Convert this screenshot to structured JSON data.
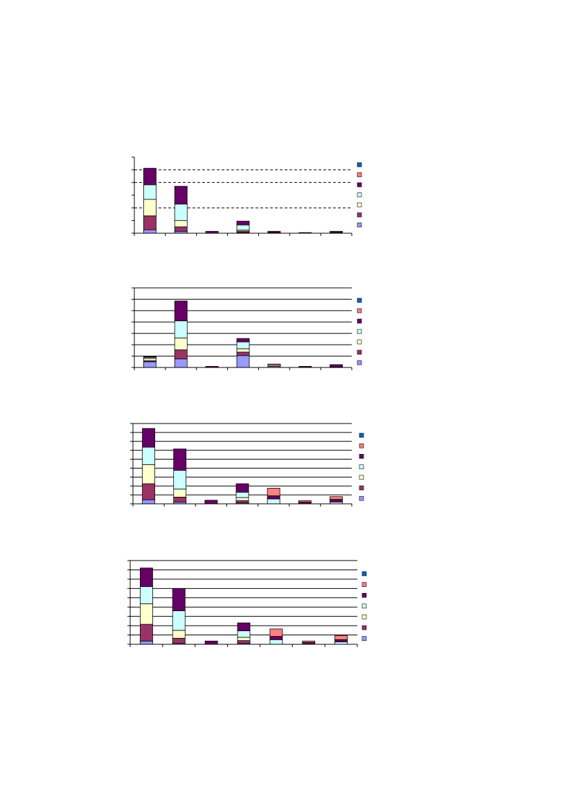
{
  "chart_data": [
    {
      "type": "bar",
      "stacked": true,
      "categories": [
        null,
        null,
        null,
        null,
        null,
        null,
        null
      ],
      "ylim": [
        0,
        6
      ],
      "yticks": [
        0,
        1,
        2,
        3,
        4,
        5,
        6
      ],
      "grid_lines": [
        2,
        4,
        5
      ],
      "grid_style": "dashed",
      "legend": "right",
      "series": [
        {
          "color": "#9999ff",
          "values": [
            0.27,
            0.15,
            0,
            0.05,
            0,
            0,
            0
          ]
        },
        {
          "color": "#993366",
          "values": [
            1.1,
            0.35,
            0,
            0.1,
            0,
            0,
            0
          ]
        },
        {
          "color": "#ffffcc",
          "values": [
            1.3,
            0.5,
            0,
            0.1,
            0,
            0,
            0
          ]
        },
        {
          "color": "#ccffff",
          "values": [
            1.15,
            1.3,
            0,
            0.4,
            0.05,
            0,
            0.05
          ]
        },
        {
          "color": "#660066",
          "values": [
            1.3,
            1.4,
            0.15,
            0.3,
            0.1,
            0.05,
            0.1
          ]
        },
        {
          "color": "#ff8080",
          "values": [
            0,
            0,
            0,
            0,
            0,
            0,
            0
          ]
        },
        {
          "color": "#0066cc",
          "values": [
            0,
            0,
            0,
            0,
            0,
            0,
            0
          ]
        }
      ]
    },
    {
      "type": "bar",
      "stacked": true,
      "categories": [
        null,
        null,
        null,
        null,
        null,
        null,
        null
      ],
      "ylim": [
        0,
        7
      ],
      "yticks": [
        0,
        1,
        2,
        3,
        4,
        5,
        6,
        7
      ],
      "grid_lines": [
        1,
        2,
        3,
        4,
        5,
        6,
        7
      ],
      "grid_style": "solid",
      "legend": "right",
      "series": [
        {
          "color": "#9999ff",
          "values": [
            0.5,
            0.75,
            0,
            1.05,
            0.1,
            0,
            0
          ]
        },
        {
          "color": "#993366",
          "values": [
            0.1,
            0.8,
            0,
            0.3,
            0,
            0,
            0
          ]
        },
        {
          "color": "#ffffcc",
          "values": [
            0.2,
            1.05,
            0,
            0.3,
            0.1,
            0,
            0
          ]
        },
        {
          "color": "#ccffff",
          "values": [
            0.1,
            1.5,
            0,
            0.6,
            0,
            0,
            0.05
          ]
        },
        {
          "color": "#660066",
          "values": [
            0.05,
            1.75,
            0.1,
            0.3,
            0,
            0.1,
            0.2
          ]
        },
        {
          "color": "#ff8080",
          "values": [
            0,
            0,
            0,
            0,
            0.1,
            0,
            0
          ]
        },
        {
          "color": "#0066cc",
          "values": [
            0,
            0,
            0,
            0,
            0,
            0,
            0
          ]
        }
      ]
    },
    {
      "type": "bar",
      "stacked": true,
      "categories": [
        null,
        null,
        null,
        null,
        null,
        null,
        null
      ],
      "ylim": [
        0,
        9
      ],
      "yticks": [
        0,
        1,
        2,
        3,
        4,
        5,
        6,
        7,
        8,
        9
      ],
      "grid_lines": [
        1,
        2,
        3,
        4,
        5,
        6,
        7,
        8,
        9
      ],
      "grid_style": "solid",
      "legend": "right",
      "series": [
        {
          "color": "#9999ff",
          "values": [
            0.45,
            0.2,
            0,
            0.1,
            0,
            0,
            0
          ]
        },
        {
          "color": "#993366",
          "values": [
            1.8,
            0.55,
            0,
            0.25,
            0,
            0,
            0
          ]
        },
        {
          "color": "#ffffcc",
          "values": [
            2.15,
            0.9,
            0,
            0.35,
            0,
            0,
            0
          ]
        },
        {
          "color": "#ccffff",
          "values": [
            1.95,
            2.1,
            0,
            0.6,
            0.55,
            0,
            0.2
          ]
        },
        {
          "color": "#660066",
          "values": [
            2.1,
            2.4,
            0.4,
            0.95,
            0.35,
            0.2,
            0.3
          ]
        },
        {
          "color": "#ff8080",
          "values": [
            0,
            0,
            0,
            0,
            0.85,
            0.15,
            0.3
          ]
        },
        {
          "color": "#0066cc",
          "values": [
            0,
            0,
            0,
            0,
            0,
            0,
            0
          ]
        }
      ]
    },
    {
      "type": "bar",
      "stacked": true,
      "categories": [
        null,
        null,
        null,
        null,
        null,
        null,
        null
      ],
      "ylim": [
        0,
        9
      ],
      "yticks": [
        0,
        1,
        2,
        3,
        4,
        5,
        6,
        7,
        8,
        9
      ],
      "grid_lines": [
        1,
        2,
        3,
        4,
        5,
        6,
        7,
        8,
        9
      ],
      "grid_style": "solid",
      "legend": "right",
      "series": [
        {
          "color": "#9999ff",
          "values": [
            0.35,
            0.1,
            0,
            0.1,
            0,
            0,
            0
          ]
        },
        {
          "color": "#993366",
          "values": [
            1.8,
            0.55,
            0,
            0.3,
            0,
            0,
            0
          ]
        },
        {
          "color": "#ffffcc",
          "values": [
            2.2,
            0.85,
            0,
            0.35,
            0,
            0,
            0
          ]
        },
        {
          "color": "#ccffff",
          "values": [
            1.85,
            2.1,
            0,
            0.7,
            0.5,
            0,
            0.25
          ]
        },
        {
          "color": "#660066",
          "values": [
            2.0,
            2.4,
            0.35,
            0.85,
            0.35,
            0.2,
            0.25
          ]
        },
        {
          "color": "#ff8080",
          "values": [
            0,
            0,
            0,
            0,
            0.8,
            0.15,
            0.45
          ]
        },
        {
          "color": "#0066cc",
          "values": [
            0,
            0,
            0,
            0,
            0,
            0,
            0
          ]
        }
      ]
    }
  ]
}
